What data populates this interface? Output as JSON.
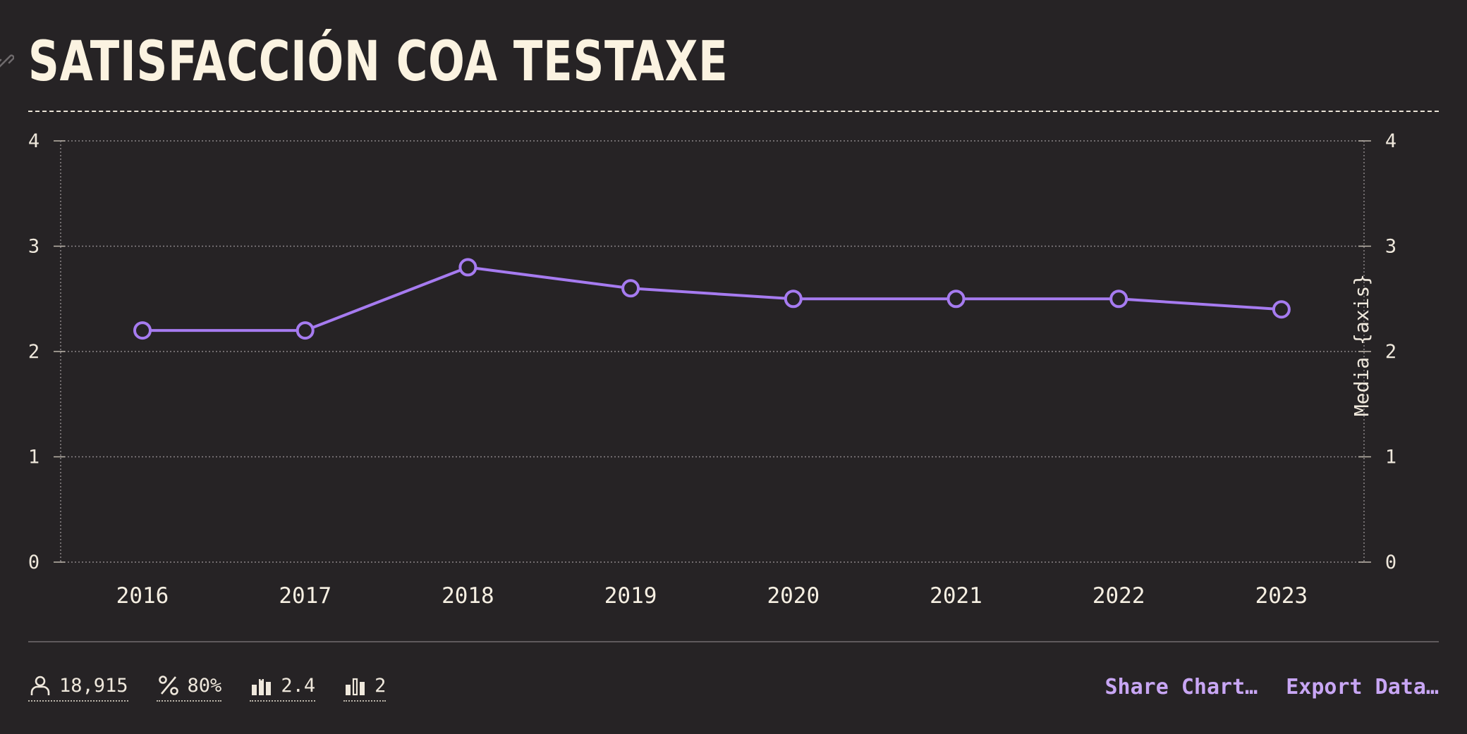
{
  "title": "SATISFACCIÓN COA TESTAXE",
  "chart_data": {
    "type": "line",
    "x": [
      "2016",
      "2017",
      "2018",
      "2019",
      "2020",
      "2021",
      "2022",
      "2023"
    ],
    "series": [
      {
        "values": [
          2.2,
          2.2,
          2.8,
          2.6,
          2.5,
          2.5,
          2.5,
          2.4
        ],
        "color": "#a67bf0"
      }
    ],
    "ylim": [
      0,
      4
    ],
    "yticks": [
      "0",
      "1",
      "2",
      "3",
      "4"
    ],
    "y2ticks": [
      "0",
      "1",
      "2",
      "3",
      "4"
    ],
    "y2label": "Media {axis}",
    "grid": true,
    "marker": "hollow-circle"
  },
  "stats": [
    {
      "icon": "person-icon",
      "value": "18,915"
    },
    {
      "icon": "percent-icon",
      "value": "80%"
    },
    {
      "icon": "bar-chart-mean-icon",
      "value": "2.4"
    },
    {
      "icon": "bar-chart-median-icon",
      "value": "2"
    }
  ],
  "actions": {
    "share": "Share Chart…",
    "export": "Export Data…"
  },
  "colors": {
    "background": "#262325",
    "text": "#f6efe2",
    "accent": "#c8a6f4",
    "line": "#a67bf0"
  }
}
